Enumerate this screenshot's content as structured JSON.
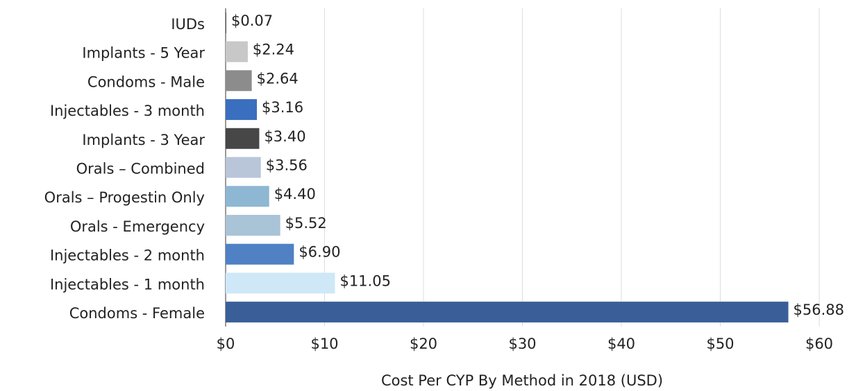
{
  "chart_data": {
    "type": "barh",
    "xlabel": "Cost Per CYP By Method in 2018 (USD)",
    "categories": [
      "IUDs",
      "Implants - 5 Year",
      "Condoms - Male",
      "Injectables - 3 month",
      "Implants - 3 Year",
      "Orals – Combined",
      "Orals – Progestin Only",
      "Orals - Emergency",
      "Injectables - 2 month",
      "Injectables - 1 month",
      "Condoms - Female"
    ],
    "values": [
      0.07,
      2.24,
      2.64,
      3.16,
      3.4,
      3.56,
      4.4,
      5.52,
      6.9,
      11.05,
      56.88
    ],
    "value_labels": [
      "$0.07",
      "$2.24",
      "$2.64",
      "$3.16",
      "$3.40",
      "$3.56",
      "$4.40",
      "$5.52",
      "$6.90",
      "$11.05",
      "$56.88"
    ],
    "colors": [
      "#555555",
      "#c8c8c8",
      "#8c8c8c",
      "#3a6fbf",
      "#474747",
      "#b9c6da",
      "#8db7d3",
      "#a9c4d6",
      "#4f81c4",
      "#cfe8f8",
      "#3a5f98"
    ],
    "xlim": [
      0,
      60
    ],
    "xticks": [
      {
        "value": 0,
        "label": "$0"
      },
      {
        "value": 10,
        "label": "$10"
      },
      {
        "value": 20,
        "label": "$20"
      },
      {
        "value": 30,
        "label": "$30"
      },
      {
        "value": 40,
        "label": "$40"
      },
      {
        "value": 50,
        "label": "$50"
      },
      {
        "value": 60,
        "label": "$60"
      }
    ],
    "grid": true
  }
}
